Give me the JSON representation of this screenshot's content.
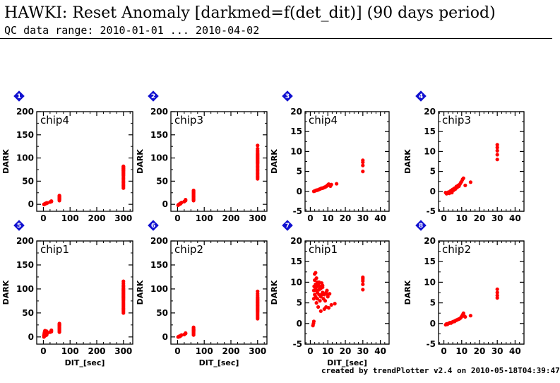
{
  "header": {
    "title": "HAWKI: Reset Anomaly [darkmed=f(det_dit)] (90 days period)",
    "subtitle": "QC data range: 2010-01-01 ... 2010-04-02"
  },
  "footer": {
    "credit": "created by trendPlotter v2.4 on 2010-05-18T04:39:47"
  },
  "colors": {
    "points": "#ff0000",
    "badge": "#1010d0"
  },
  "chart_data": [
    {
      "type": "scatter",
      "panel": "1",
      "label": "chip4",
      "ylabel": "DARK",
      "xlabel": "",
      "xlim": [
        -25,
        335
      ],
      "ylim": [
        -15,
        200
      ],
      "xticks": [
        0,
        100,
        200,
        300
      ],
      "yticks": [
        0,
        50,
        100,
        150,
        200
      ],
      "series": [
        {
          "x": [
            2,
            3,
            5,
            6,
            8,
            10,
            11,
            12,
            13,
            15,
            25,
            30,
            30,
            60,
            60,
            60,
            60,
            60,
            60,
            60,
            60,
            60,
            60,
            60
          ],
          "y": [
            0,
            0,
            1,
            1,
            2,
            2,
            2,
            3,
            3,
            3,
            5,
            6,
            7,
            8,
            10,
            11,
            12,
            13,
            14,
            15,
            16,
            17,
            18,
            19
          ]
        },
        {
          "x": [
            300,
            300,
            300,
            300,
            300,
            300,
            300,
            300,
            300,
            300,
            300,
            300,
            300,
            300,
            300,
            300,
            300,
            300,
            300,
            300,
            300,
            300,
            300
          ],
          "y": [
            35,
            38,
            41,
            44,
            47,
            50,
            53,
            56,
            59,
            62,
            64,
            66,
            68,
            70,
            72,
            73,
            74,
            76,
            77,
            78,
            80,
            81,
            82
          ]
        }
      ]
    },
    {
      "type": "scatter",
      "panel": "2",
      "label": "chip3",
      "ylabel": "DARK",
      "xlabel": "",
      "xlim": [
        -25,
        335
      ],
      "ylim": [
        -15,
        200
      ],
      "xticks": [
        0,
        100,
        200,
        300
      ],
      "yticks": [
        0,
        50,
        100,
        150,
        200
      ],
      "series": [
        {
          "x": [
            2,
            3,
            5,
            6,
            8,
            10,
            11,
            12,
            13,
            15,
            25,
            30,
            30,
            60,
            60,
            60,
            60,
            60,
            60,
            60,
            60,
            60,
            60,
            60,
            60
          ],
          "y": [
            -2,
            -1,
            0,
            0,
            1,
            1,
            2,
            2,
            3,
            4,
            6,
            8,
            10,
            8,
            10,
            12,
            14,
            16,
            18,
            20,
            22,
            24,
            26,
            28,
            30
          ]
        },
        {
          "x": [
            300,
            300,
            300,
            300,
            300,
            300,
            300,
            300,
            300,
            300,
            300,
            300,
            300,
            300,
            300,
            300,
            300,
            300,
            300,
            300,
            300,
            300,
            300,
            300,
            300,
            300,
            300
          ],
          "y": [
            55,
            58,
            61,
            64,
            67,
            70,
            73,
            76,
            79,
            82,
            85,
            88,
            90,
            92,
            94,
            96,
            98,
            100,
            102,
            104,
            106,
            108,
            110,
            113,
            116,
            120,
            127
          ]
        }
      ]
    },
    {
      "type": "scatter",
      "panel": "3",
      "label": "chip4",
      "ylabel": "DARK",
      "xlabel": "",
      "xlim": [
        -3,
        45
      ],
      "ylim": [
        -5,
        20
      ],
      "xticks": [
        0,
        10,
        20,
        30,
        40
      ],
      "yticks": [
        -5,
        0,
        5,
        10,
        15,
        20
      ],
      "series": [
        {
          "x": [
            2,
            2.5,
            3,
            3.5,
            4,
            4.5,
            5,
            5.5,
            6,
            6.5,
            7,
            7.5,
            8,
            8.5,
            9,
            9.5,
            10,
            10.5,
            11,
            11.5,
            12,
            15,
            30,
            30,
            30,
            30
          ],
          "y": [
            0,
            0.1,
            0.2,
            0.3,
            0.3,
            0.4,
            0.5,
            0.6,
            0.7,
            0.8,
            0.8,
            0.9,
            1.0,
            1.1,
            1.2,
            1.4,
            1.6,
            1.8,
            1.5,
            1.3,
            1.7,
            1.9,
            5,
            6.5,
            7.3,
            7.8
          ]
        }
      ]
    },
    {
      "type": "scatter",
      "panel": "4",
      "label": "chip3",
      "ylabel": "DARK",
      "xlabel": "",
      "xlim": [
        -3,
        45
      ],
      "ylim": [
        -5,
        20
      ],
      "xticks": [
        0,
        10,
        20,
        30,
        40
      ],
      "yticks": [
        -5,
        0,
        5,
        10,
        15,
        20
      ],
      "series": [
        {
          "x": [
            1,
            1.5,
            2,
            2.5,
            3,
            3.5,
            4,
            4.5,
            5,
            5.5,
            6,
            6.5,
            7,
            7.5,
            8,
            8.5,
            9,
            9.5,
            10,
            10.5,
            11,
            12,
            15,
            30,
            30,
            30,
            30,
            30
          ],
          "y": [
            -0.3,
            -0.6,
            -0.4,
            -0.2,
            -0.5,
            0,
            0.2,
            -0.3,
            0.5,
            0.3,
            0.8,
            0.6,
            1.2,
            1.0,
            1.5,
            1.3,
            1.8,
            2.2,
            2.5,
            3.0,
            3.3,
            1.5,
            2.3,
            8,
            9.2,
            10.2,
            11,
            11.7
          ]
        }
      ]
    },
    {
      "type": "scatter",
      "panel": "5",
      "label": "chip1",
      "ylabel": "DARK",
      "xlabel": "DIT_[sec]",
      "xlim": [
        -25,
        335
      ],
      "ylim": [
        -15,
        200
      ],
      "xticks": [
        0,
        100,
        200,
        300
      ],
      "yticks": [
        0,
        50,
        100,
        150,
        200
      ],
      "series": [
        {
          "x": [
            2,
            2,
            3,
            3,
            4,
            5,
            5,
            6,
            6,
            7,
            8,
            8,
            10,
            11,
            12,
            12,
            13,
            15,
            25,
            30,
            30,
            60,
            60,
            60,
            60,
            60,
            60,
            60,
            60,
            60,
            60,
            60
          ],
          "y": [
            0,
            3,
            1,
            6,
            9,
            2,
            11,
            4,
            13,
            8,
            3,
            10,
            6,
            9,
            4,
            12,
            7,
            8,
            10,
            11,
            14,
            10,
            12,
            14,
            16,
            18,
            20,
            22,
            24,
            25,
            26,
            28
          ]
        },
        {
          "x": [
            300,
            300,
            300,
            300,
            300,
            300,
            300,
            300,
            300,
            300,
            300,
            300,
            300,
            300,
            300,
            300,
            300,
            300,
            300,
            300,
            300,
            300,
            300,
            300,
            300,
            300
          ],
          "y": [
            50,
            54,
            57,
            60,
            63,
            66,
            69,
            72,
            75,
            78,
            80,
            82,
            84,
            86,
            88,
            90,
            92,
            94,
            96,
            98,
            100,
            102,
            105,
            108,
            112,
            116
          ]
        }
      ]
    },
    {
      "type": "scatter",
      "panel": "6",
      "label": "chip2",
      "ylabel": "DARK",
      "xlabel": "DIT_[sec]",
      "xlim": [
        -25,
        335
      ],
      "ylim": [
        -15,
        200
      ],
      "xticks": [
        0,
        100,
        200,
        300
      ],
      "yticks": [
        0,
        50,
        100,
        150,
        200
      ],
      "series": [
        {
          "x": [
            2,
            3,
            5,
            6,
            8,
            10,
            11,
            12,
            13,
            15,
            25,
            30,
            30,
            60,
            60,
            60,
            60,
            60,
            60,
            60,
            60,
            60,
            60,
            60
          ],
          "y": [
            0,
            0,
            1,
            1,
            1,
            2,
            2,
            3,
            3,
            4,
            5,
            7,
            8,
            4,
            6,
            8,
            10,
            12,
            13,
            14,
            15,
            16,
            18,
            20
          ]
        },
        {
          "x": [
            300,
            300,
            300,
            300,
            300,
            300,
            300,
            300,
            300,
            300,
            300,
            300,
            300,
            300,
            300,
            300,
            300,
            300,
            300,
            300,
            300,
            300,
            300,
            300
          ],
          "y": [
            38,
            41,
            44,
            47,
            50,
            53,
            55,
            57,
            59,
            61,
            63,
            65,
            67,
            69,
            71,
            73,
            75,
            77,
            79,
            81,
            83,
            86,
            90,
            95
          ]
        }
      ]
    },
    {
      "type": "scatter",
      "panel": "7",
      "label": "chip1",
      "ylabel": "DARK",
      "xlabel": "DIT_[sec]",
      "xlim": [
        -3,
        45
      ],
      "ylim": [
        -5,
        20
      ],
      "xticks": [
        0,
        10,
        20,
        30,
        40
      ],
      "yticks": [
        -5,
        0,
        5,
        10,
        15,
        20
      ],
      "series": [
        {
          "x": [
            1.5,
            1.8,
            2,
            2,
            2,
            2.2,
            2.5,
            2.5,
            2.5,
            3,
            3,
            3,
            3,
            3.5,
            3.5,
            3.5,
            4,
            4,
            4,
            4,
            4.5,
            4.5,
            5,
            5,
            5,
            5.5,
            5.5,
            6,
            6,
            6,
            6.5,
            6.5,
            7,
            7,
            7,
            7.5,
            8,
            8,
            8.5,
            9,
            9,
            9.5,
            10,
            10,
            10.5,
            11,
            12,
            14,
            30,
            30,
            30,
            30,
            30
          ],
          "y": [
            -0.5,
            0,
            0.5,
            6,
            8,
            9,
            7,
            10.5,
            12,
            6.5,
            8.5,
            9.5,
            12.3,
            5,
            8,
            11,
            6,
            7.5,
            9,
            10,
            4,
            9.5,
            7,
            8.2,
            10,
            5.5,
            9,
            3,
            6.5,
            8.5,
            7,
            9.8,
            7.5,
            8.8,
            9.2,
            6,
            3.5,
            7,
            5.5,
            4,
            7.5,
            8,
            6.5,
            7,
            3.8,
            7.2,
            4.5,
            4.8,
            8.2,
            9.5,
            10.3,
            10.8,
            11.2
          ]
        }
      ]
    },
    {
      "type": "scatter",
      "panel": "8",
      "label": "chip2",
      "ylabel": "DARK",
      "xlabel": "",
      "xlim": [
        -3,
        45
      ],
      "ylim": [
        -5,
        20
      ],
      "xticks": [
        0,
        10,
        20,
        30,
        40
      ],
      "yticks": [
        -5,
        0,
        5,
        10,
        15,
        20
      ],
      "series": [
        {
          "x": [
            1,
            1.5,
            2,
            2.5,
            3,
            3.5,
            4,
            4.5,
            5,
            5.5,
            6,
            6.5,
            7,
            7.5,
            8,
            8.5,
            9,
            9.5,
            10,
            10.5,
            11,
            11.5,
            12,
            15,
            30,
            30,
            30,
            30
          ],
          "y": [
            -0.3,
            -0.1,
            -0.2,
            0,
            0.1,
            0.2,
            0.1,
            0.3,
            0.4,
            0.5,
            0.5,
            0.7,
            0.8,
            0.9,
            1.0,
            1.1,
            1.2,
            1.4,
            1.7,
            2.1,
            2.5,
            1.8,
            1.6,
            1.9,
            6.2,
            6.8,
            7.5,
            8.3
          ]
        }
      ]
    }
  ]
}
